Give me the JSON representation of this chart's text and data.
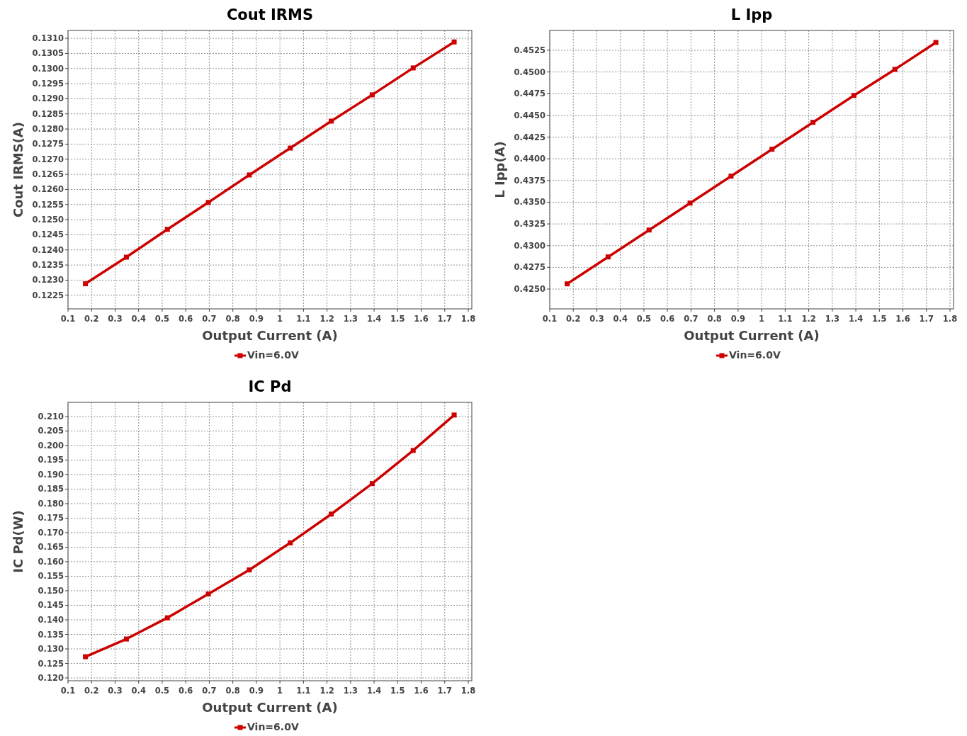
{
  "chart_data": [
    {
      "type": "line",
      "title": "Cout IRMS",
      "xlabel": "Output Current (A)",
      "ylabel": "Cout IRMS(A)",
      "x": [
        0.174,
        0.348,
        0.522,
        0.696,
        0.87,
        1.044,
        1.218,
        1.392,
        1.566,
        1.74
      ],
      "series": [
        {
          "name": "Vin=6.0V",
          "color": "#cc0000",
          "values": [
            0.12288,
            0.12376,
            0.12468,
            0.12557,
            0.12648,
            0.12737,
            0.12826,
            0.12913,
            0.13002,
            0.13088
          ]
        }
      ],
      "xlim": [
        0.1,
        1.815
      ],
      "xticks": [
        0.1,
        0.2,
        0.3,
        0.4,
        0.5,
        0.6,
        0.7,
        0.8,
        0.9,
        1.0,
        1.1,
        1.2,
        1.3,
        1.4,
        1.5,
        1.6,
        1.7,
        1.8
      ],
      "ylim": [
        0.12205,
        0.13126
      ],
      "yticks": [
        {
          "value": 0.1225,
          "label": "0.1225"
        },
        {
          "value": 0.123,
          "label": "0.1230"
        },
        {
          "value": 0.1235,
          "label": "0.1235"
        },
        {
          "value": 0.124,
          "label": "0.1240"
        },
        {
          "value": 0.1245,
          "label": "0.1245"
        },
        {
          "value": 0.125,
          "label": "0.1250"
        },
        {
          "value": 0.1255,
          "label": "0.1255"
        },
        {
          "value": 0.126,
          "label": "0.1260"
        },
        {
          "value": 0.1265,
          "label": "0.1265"
        },
        {
          "value": 0.127,
          "label": "0.1270"
        },
        {
          "value": 0.1275,
          "label": "0.1275"
        },
        {
          "value": 0.128,
          "label": "0.1280"
        },
        {
          "value": 0.1285,
          "label": "0.1285"
        },
        {
          "value": 0.129,
          "label": "0.1290"
        },
        {
          "value": 0.1295,
          "label": "0.1295"
        },
        {
          "value": 0.13,
          "label": "0.1300"
        },
        {
          "value": 0.1305,
          "label": "0.1305"
        },
        {
          "value": 0.131,
          "label": "0.1310"
        }
      ],
      "grid": true,
      "legend": "bottom",
      "marker": "square",
      "line_style": "solid"
    },
    {
      "type": "line",
      "title": "L Ipp",
      "xlabel": "Output Current (A)",
      "ylabel": "L Ipp(A)",
      "x": [
        0.174,
        0.348,
        0.522,
        0.696,
        0.87,
        1.044,
        1.218,
        1.392,
        1.566,
        1.74
      ],
      "series": [
        {
          "name": "Vin=6.0V",
          "color": "#cc0000",
          "values": [
            0.4256,
            0.4287,
            0.4318,
            0.4349,
            0.438,
            0.4411,
            0.4442,
            0.4473,
            0.4503,
            0.4534
          ]
        }
      ],
      "xlim": [
        0.1,
        1.815
      ],
      "xticks": [
        0.1,
        0.2,
        0.3,
        0.4,
        0.5,
        0.6,
        0.7,
        0.8,
        0.9,
        1.0,
        1.1,
        1.2,
        1.3,
        1.4,
        1.5,
        1.6,
        1.7,
        1.8
      ],
      "ylim": [
        0.42272,
        0.45478
      ],
      "yticks": [
        {
          "value": 0.425,
          "label": "0.4250"
        },
        {
          "value": 0.4275,
          "label": "0.4275"
        },
        {
          "value": 0.43,
          "label": "0.4300"
        },
        {
          "value": 0.4325,
          "label": "0.4325"
        },
        {
          "value": 0.435,
          "label": "0.4350"
        },
        {
          "value": 0.4375,
          "label": "0.4375"
        },
        {
          "value": 0.44,
          "label": "0.4400"
        },
        {
          "value": 0.4425,
          "label": "0.4425"
        },
        {
          "value": 0.445,
          "label": "0.4450"
        },
        {
          "value": 0.4475,
          "label": "0.4475"
        },
        {
          "value": 0.45,
          "label": "0.4500"
        },
        {
          "value": 0.4525,
          "label": "0.4525"
        }
      ],
      "grid": true,
      "legend": "bottom",
      "marker": "square",
      "line_style": "solid"
    },
    {
      "type": "line",
      "title": "IC Pd",
      "xlabel": "Output Current (A)",
      "ylabel": "IC Pd(W)",
      "x": [
        0.174,
        0.348,
        0.522,
        0.696,
        0.87,
        1.044,
        1.218,
        1.392,
        1.566,
        1.74
      ],
      "series": [
        {
          "name": "Vin=6.0V",
          "color": "#cc0000",
          "values": [
            0.1273,
            0.1334,
            0.1407,
            0.1489,
            0.1572,
            0.1665,
            0.1764,
            0.1869,
            0.1983,
            0.2105
          ]
        }
      ],
      "xlim": [
        0.1,
        1.815
      ],
      "xticks": [
        0.1,
        0.2,
        0.3,
        0.4,
        0.5,
        0.6,
        0.7,
        0.8,
        0.9,
        1.0,
        1.1,
        1.2,
        1.3,
        1.4,
        1.5,
        1.6,
        1.7,
        1.8
      ],
      "ylim": [
        0.11903,
        0.21486
      ],
      "yticks": [
        {
          "value": 0.12,
          "label": "0.120"
        },
        {
          "value": 0.125,
          "label": "0.125"
        },
        {
          "value": 0.13,
          "label": "0.130"
        },
        {
          "value": 0.135,
          "label": "0.135"
        },
        {
          "value": 0.14,
          "label": "0.140"
        },
        {
          "value": 0.145,
          "label": "0.145"
        },
        {
          "value": 0.15,
          "label": "0.150"
        },
        {
          "value": 0.155,
          "label": "0.155"
        },
        {
          "value": 0.16,
          "label": "0.160"
        },
        {
          "value": 0.165,
          "label": "0.165"
        },
        {
          "value": 0.17,
          "label": "0.170"
        },
        {
          "value": 0.175,
          "label": "0.175"
        },
        {
          "value": 0.18,
          "label": "0.180"
        },
        {
          "value": 0.185,
          "label": "0.185"
        },
        {
          "value": 0.19,
          "label": "0.190"
        },
        {
          "value": 0.195,
          "label": "0.195"
        },
        {
          "value": 0.2,
          "label": "0.200"
        },
        {
          "value": 0.205,
          "label": "0.205"
        },
        {
          "value": 0.21,
          "label": "0.210"
        }
      ],
      "grid": true,
      "legend": "bottom",
      "marker": "square",
      "line_style": "solid"
    }
  ]
}
